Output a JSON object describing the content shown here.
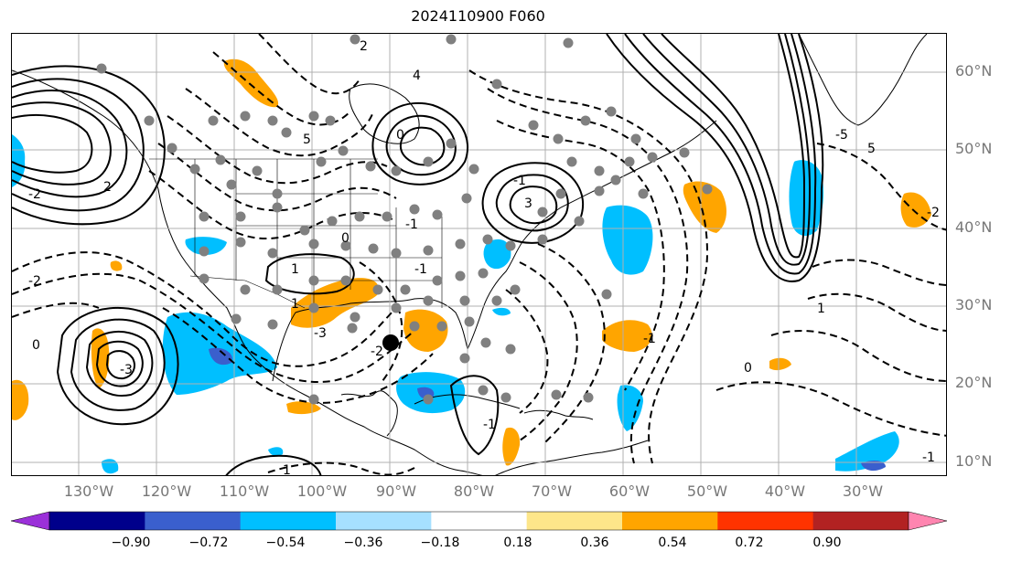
{
  "title": "2024110900 F060",
  "lat_labels": [
    "60°N",
    "50°N",
    "40°N",
    "30°N",
    "20°N",
    "10°N"
  ],
  "lon_labels": [
    "130°W",
    "120°W",
    "110°W",
    "100°W",
    "90°W",
    "80°W",
    "70°W",
    "60°W",
    "50°W",
    "40°W",
    "30°W"
  ],
  "colorbar": {
    "labels": [
      "−0.90",
      "−0.72",
      "−0.54",
      "−0.36",
      "−0.18",
      "0.18",
      "0.36",
      "0.54",
      "0.72",
      "0.90"
    ],
    "colors": [
      "#9b30d9",
      "#00008b",
      "#3a5fcd",
      "#00bfff",
      "#a6e0ff",
      "#ffffff",
      "#fde68a",
      "#ffa500",
      "#ff3300",
      "#b22222",
      "#ff85b0"
    ]
  },
  "colors": {
    "negative_fill": "#00bfff",
    "positive_fill": "#ffa500",
    "station_dot": "#808080",
    "grid": "#b0b0b0",
    "coast": "#000000"
  },
  "contour_labels": [
    "4",
    "5",
    "0",
    "-1",
    "3",
    "-2",
    "2",
    "1",
    "-3",
    "1",
    "0",
    "-1",
    "-1",
    "-2",
    "-3",
    "0",
    "1",
    "-1",
    "-2",
    "-5",
    "5",
    "-1",
    "1",
    "0",
    "-1",
    "-2",
    "2"
  ],
  "marker": {
    "label": "storm-center",
    "lat": 25.5,
    "lon": -87.5
  }
}
